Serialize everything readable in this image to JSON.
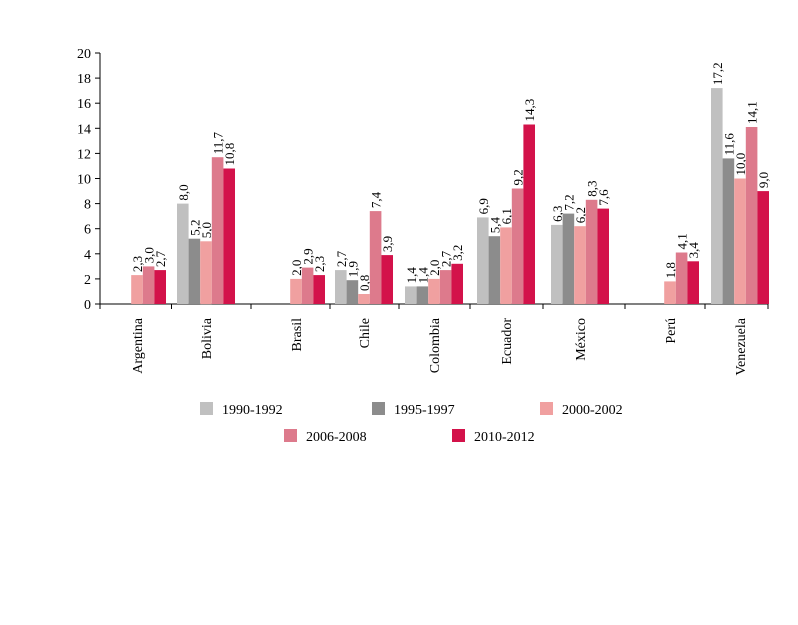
{
  "chart_data": {
    "type": "bar",
    "title": "",
    "xlabel": "",
    "ylabel": "",
    "ylim": [
      0,
      20
    ],
    "yticks": [
      0,
      2,
      4,
      6,
      8,
      10,
      12,
      14,
      16,
      18,
      20
    ],
    "ytick_labels": [
      "0",
      "2",
      "4",
      "6",
      "8",
      "10",
      "12",
      "14",
      "16",
      "18",
      "20"
    ],
    "grid": false,
    "legend_position": "bottom",
    "categories": [
      "Argentina",
      "Bolivia",
      "Brasil",
      "Chile",
      "Colombia",
      "Ecuador",
      "México",
      "Perú",
      "Venezuela"
    ],
    "series": [
      {
        "name": "1990-1992",
        "color": "#c0c0c0",
        "values": [
          null,
          8.0,
          null,
          2.7,
          1.4,
          6.9,
          6.3,
          null,
          17.2
        ],
        "labels": [
          null,
          "8,0",
          null,
          "2,7",
          "1,4",
          "6,9",
          "6,3",
          null,
          "17,2"
        ]
      },
      {
        "name": "1995-1997",
        "color": "#8c8c8c",
        "values": [
          null,
          5.2,
          null,
          1.9,
          1.4,
          5.4,
          7.2,
          null,
          11.6
        ],
        "labels": [
          null,
          "5,2",
          null,
          "1,9",
          "1,4",
          "5,4",
          "7,2",
          null,
          "11,6"
        ]
      },
      {
        "name": "2000-2002",
        "color": "#f0a0a0",
        "values": [
          2.3,
          5.0,
          2.0,
          0.8,
          2.0,
          6.1,
          6.2,
          1.8,
          10.0
        ],
        "labels": [
          "2,3",
          "5,0",
          "2,0",
          "0,8",
          "2,0",
          "6,1",
          "6,2",
          "1,8",
          "10,0"
        ]
      },
      {
        "name": "2006-2008",
        "color": "#dd7a8c",
        "values": [
          3.0,
          11.7,
          2.9,
          7.4,
          2.7,
          9.2,
          8.3,
          4.1,
          14.1
        ],
        "labels": [
          "3,0",
          "11,7",
          "2,9",
          "7,4",
          "2,7",
          "9,2",
          "8,3",
          "4,1",
          "14,1"
        ]
      },
      {
        "name": "2010-2012",
        "color": "#d3124a",
        "values": [
          2.7,
          10.8,
          2.3,
          3.9,
          3.2,
          14.3,
          7.6,
          3.4,
          9.0
        ],
        "labels": [
          "2,7",
          "10,8",
          "2,3",
          "3,9",
          "3,2",
          "14,3",
          "7,6",
          "3,4",
          "9,0"
        ]
      }
    ]
  }
}
